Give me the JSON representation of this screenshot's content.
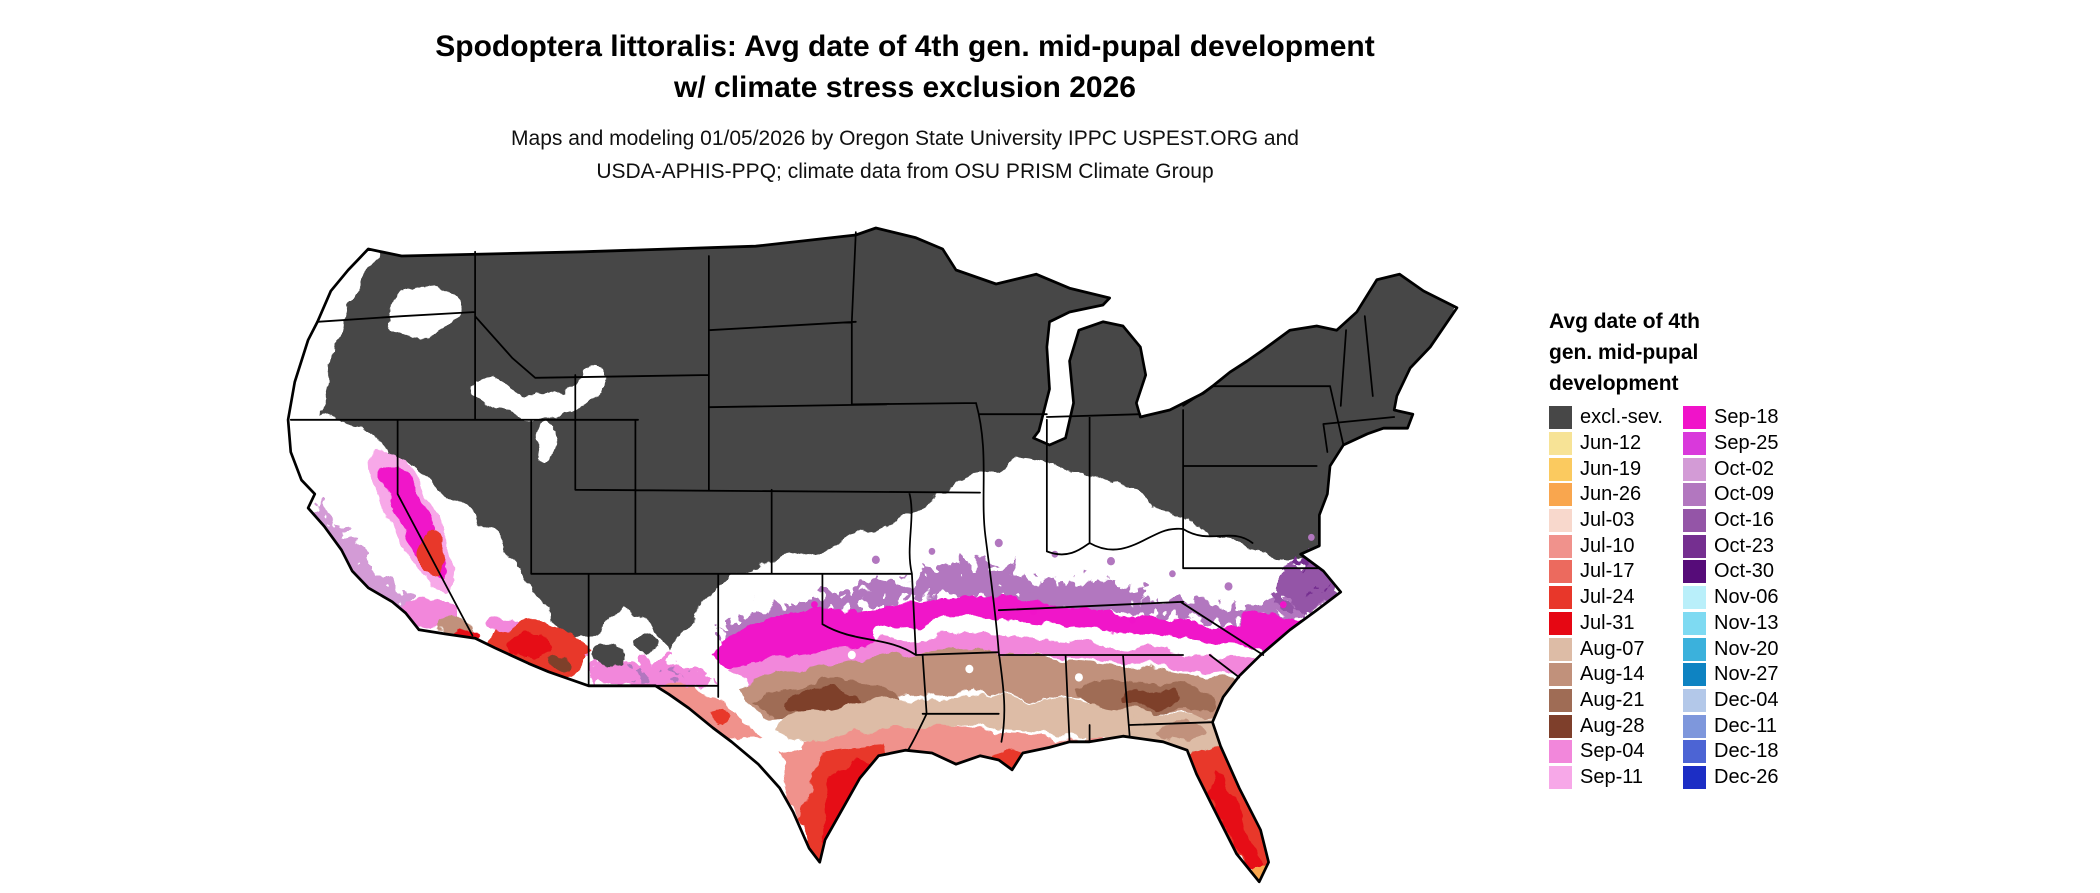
{
  "header": {
    "title_line1": "Spodoptera littoralis: Avg date of 4th gen. mid-pupal development",
    "title_line2": "w/ climate stress exclusion 2026",
    "subtitle_line1": "Maps and modeling 01/05/2026 by Oregon State University IPPC USPEST.ORG and",
    "subtitle_line2": "USDA-APHIS-PPQ; climate data from OSU PRISM Climate Group"
  },
  "legend": {
    "title_line1": "Avg date of 4th",
    "title_line2": "gen. mid-pupal",
    "title_line3": "development",
    "col1": [
      {
        "label": "excl.-sev.",
        "color": "#474747"
      },
      {
        "label": "Jun-12",
        "color": "#F7E396"
      },
      {
        "label": "Jun-19",
        "color": "#FBCA5F"
      },
      {
        "label": "Jun-26",
        "color": "#F9A64E"
      },
      {
        "label": "Jul-03",
        "color": "#F8D8CC"
      },
      {
        "label": "Jul-10",
        "color": "#F0928C"
      },
      {
        "label": "Jul-17",
        "color": "#EC6A5E"
      },
      {
        "label": "Jul-24",
        "color": "#E8372A"
      },
      {
        "label": "Jul-31",
        "color": "#E60713"
      },
      {
        "label": "Aug-07",
        "color": "#DDBCA6"
      },
      {
        "label": "Aug-14",
        "color": "#C1917B"
      },
      {
        "label": "Aug-21",
        "color": "#9F6C55"
      },
      {
        "label": "Aug-28",
        "color": "#7E3F2B"
      },
      {
        "label": "Sep-04",
        "color": "#F287DB"
      },
      {
        "label": "Sep-11",
        "color": "#F7A8E8"
      }
    ],
    "col2": [
      {
        "label": "Sep-18",
        "color": "#F013C9"
      },
      {
        "label": "Sep-25",
        "color": "#D939DB"
      },
      {
        "label": "Oct-02",
        "color": "#D39BD6"
      },
      {
        "label": "Oct-09",
        "color": "#B277BF"
      },
      {
        "label": "Oct-16",
        "color": "#9455A7"
      },
      {
        "label": "Oct-23",
        "color": "#752F90"
      },
      {
        "label": "Oct-30",
        "color": "#560C79"
      },
      {
        "label": "Nov-06",
        "color": "#B9EFFA"
      },
      {
        "label": "Nov-13",
        "color": "#7EDAF2"
      },
      {
        "label": "Nov-20",
        "color": "#3BB1DC"
      },
      {
        "label": "Nov-27",
        "color": "#0E83C2"
      },
      {
        "label": "Dec-04",
        "color": "#B3C8E9"
      },
      {
        "label": "Dec-11",
        "color": "#7E97DC"
      },
      {
        "label": "Dec-18",
        "color": "#4C64D4"
      },
      {
        "label": "Dec-26",
        "color": "#1C2EC5"
      }
    ]
  },
  "map": {
    "region": "Continental United States",
    "land_base_color": "#FFFFFF",
    "border_color": "#000000",
    "state_line_color": "#000000"
  }
}
